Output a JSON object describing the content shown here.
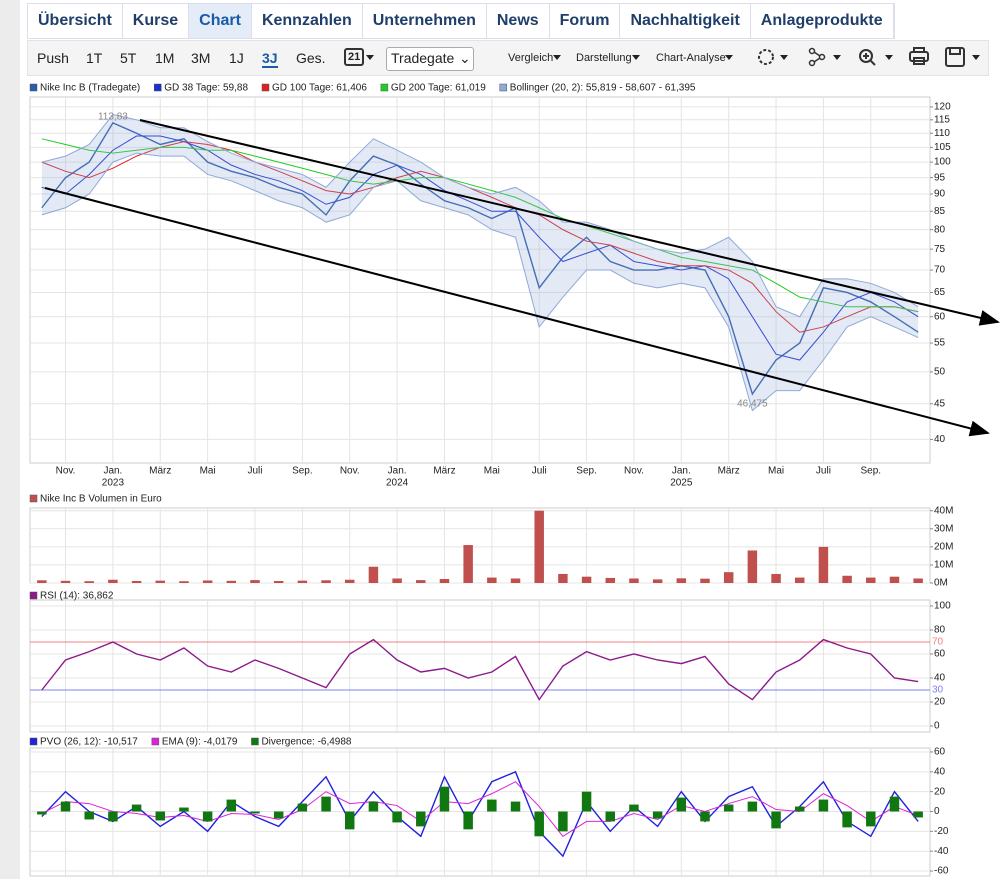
{
  "tabs": [
    "Übersicht",
    "Kurse",
    "Chart",
    "Kennzahlen",
    "Unternehmen",
    "News",
    "Forum",
    "Nachhaltigkeit",
    "Anlageprodukte"
  ],
  "toolbar": {
    "periods": [
      "Push",
      "1T",
      "5T",
      "1M",
      "3M",
      "1J",
      "3J",
      "Ges."
    ],
    "calendar": "21",
    "exchange": "Tradegate",
    "menus": [
      "Vergleich",
      "Darstellung",
      "Chart-Analyse"
    ]
  },
  "chart_data": [
    {
      "type": "line",
      "log_scale": true,
      "grid": true,
      "categories": [
        null,
        "Nov.",
        null,
        "Jan.",
        null,
        "März",
        null,
        "Mai",
        null,
        "Juli",
        null,
        "Sep.",
        null,
        "Nov.",
        null,
        "Jan.",
        null,
        "März",
        null,
        "Mai",
        null,
        "Juli",
        null,
        "Sep.",
        null,
        "Nov.",
        null,
        "Jan.",
        null,
        "März",
        null,
        "Mai",
        null,
        "Juli",
        null,
        "Sep.",
        null,
        null
      ],
      "x_year_labels": [
        "2023",
        "2024",
        "2025"
      ],
      "ylim": [
        37,
        124
      ],
      "yticks": [
        40,
        45,
        50,
        55,
        60,
        65,
        70,
        75,
        80,
        85,
        90,
        95,
        100,
        105,
        110,
        115,
        120
      ],
      "annotations": [
        {
          "label": "113,83",
          "value": 113.83
        },
        {
          "label": "46,475",
          "value": 46.475
        }
      ],
      "series": [
        {
          "name": "Nike Inc B (Tradegate)",
          "color": "#2b5cab",
          "values": [
            86,
            95,
            100,
            113.83,
            110,
            106,
            108,
            100,
            97,
            95,
            92,
            90,
            84,
            94,
            102,
            99,
            93,
            88,
            86,
            83,
            86,
            66,
            73,
            78,
            72,
            70,
            70,
            71,
            70,
            60,
            46.475,
            52,
            55,
            66,
            65,
            63,
            60,
            57
          ]
        },
        {
          "name": "GD 38 Tage: 59,88",
          "color": "#1a2fd0",
          "values": [
            92,
            90,
            96,
            104,
            109,
            109,
            107,
            104,
            99,
            96,
            94,
            91,
            87,
            89,
            96,
            99,
            96,
            91,
            88,
            85,
            85,
            78,
            72,
            74,
            76,
            72,
            71,
            70,
            71,
            68,
            60,
            53,
            52,
            57,
            63,
            65,
            63,
            60
          ]
        },
        {
          "name": "GD 100 Tage: 61,406",
          "color": "#e02020",
          "values": [
            100,
            97,
            95,
            98,
            102,
            105,
            107,
            106,
            104,
            100,
            97,
            94,
            91,
            90,
            92,
            95,
            97,
            95,
            92,
            89,
            86,
            84,
            80,
            77,
            76,
            74,
            72,
            71,
            71,
            70,
            67,
            61,
            57,
            58,
            60,
            62,
            62,
            61
          ]
        },
        {
          "name": "GD 200 Tage: 61,019",
          "color": "#22cc22",
          "values": [
            108,
            106,
            104,
            103,
            104,
            105,
            105,
            104,
            104,
            102,
            100,
            98,
            96,
            94,
            93,
            94,
            95,
            95,
            93,
            91,
            89,
            86,
            83,
            81,
            79,
            77,
            75,
            73,
            72,
            71,
            70,
            67,
            64,
            63,
            62,
            62,
            62,
            61
          ]
        },
        {
          "name": "Bollinger (20, 2): 55,819 - 58,607 - 61,395",
          "color": "#8fa9d8",
          "upper": [
            100,
            102,
            106,
            117,
            115,
            112,
            112,
            107,
            103,
            100,
            98,
            96,
            92,
            100,
            108,
            104,
            100,
            95,
            92,
            90,
            92,
            88,
            82,
            82,
            80,
            77,
            75,
            74,
            75,
            78,
            72,
            62,
            60,
            68,
            68,
            67,
            65,
            62
          ],
          "lower": [
            84,
            86,
            90,
            100,
            103,
            102,
            102,
            96,
            94,
            91,
            88,
            86,
            82,
            84,
            92,
            94,
            88,
            86,
            84,
            80,
            78,
            58,
            64,
            70,
            70,
            67,
            66,
            67,
            66,
            58,
            44,
            47,
            47,
            52,
            58,
            60,
            58,
            56
          ]
        }
      ]
    },
    {
      "type": "bar",
      "grid": true,
      "ylim": [
        0,
        41500000
      ],
      "yticks": [
        {
          "value": 0,
          "label": "0M"
        },
        {
          "value": 10000000,
          "label": "10M"
        },
        {
          "value": 20000000,
          "label": "20M"
        },
        {
          "value": 30000000,
          "label": "30M"
        },
        {
          "value": 40000000,
          "label": "40M"
        }
      ],
      "series": [
        {
          "name": "Nike Inc B Volumen in Euro",
          "color": "#c0504d",
          "values": [
            1500000,
            1200000,
            1000000,
            1800000,
            1100000,
            1300000,
            1000000,
            1400000,
            1200000,
            1600000,
            1100000,
            1300000,
            1500000,
            1800000,
            9000000,
            2500000,
            1600000,
            2200000,
            21000000,
            3000000,
            2500000,
            40000000,
            5000000,
            3500000,
            2800000,
            2500000,
            2000000,
            2600000,
            2400000,
            6000000,
            18000000,
            5000000,
            3000000,
            20000000,
            4000000,
            3000000,
            3500000,
            2500000
          ]
        }
      ]
    },
    {
      "type": "line",
      "grid": true,
      "ylim": [
        -5,
        105
      ],
      "yticks": [
        0,
        20,
        40,
        60,
        80,
        100
      ],
      "hlines": [
        {
          "value": 70,
          "color": "#f08080"
        },
        {
          "value": 30,
          "color": "#8080f0"
        }
      ],
      "series": [
        {
          "name": "RSI (14): 36,862",
          "color": "#8b1a8b",
          "values": [
            30,
            55,
            62,
            70,
            60,
            55,
            65,
            50,
            45,
            55,
            48,
            40,
            32,
            60,
            72,
            55,
            45,
            48,
            40,
            45,
            58,
            22,
            50,
            62,
            55,
            60,
            55,
            52,
            58,
            35,
            22,
            45,
            55,
            72,
            65,
            60,
            40,
            37
          ]
        }
      ]
    },
    {
      "type": "line",
      "grid": true,
      "ylim": [
        -65,
        64
      ],
      "yticks": [
        -60,
        -40,
        -20,
        0,
        20,
        40,
        60
      ],
      "series": [
        {
          "name": "PVO (26, 12): -10,517",
          "color": "#2222dd",
          "values": [
            -5,
            20,
            0,
            -10,
            5,
            -15,
            0,
            -20,
            10,
            -5,
            -15,
            10,
            35,
            -10,
            20,
            -5,
            -25,
            35,
            -10,
            30,
            40,
            -20,
            -45,
            10,
            -20,
            5,
            -15,
            20,
            -10,
            15,
            25,
            -15,
            5,
            30,
            -10,
            -25,
            20,
            -10
          ]
        },
        {
          "name": "EMA (9): -4,0179",
          "color": "#dd22dd",
          "values": [
            -2,
            10,
            8,
            0,
            -2,
            -6,
            -4,
            -10,
            -2,
            -3,
            -8,
            2,
            20,
            8,
            10,
            6,
            -10,
            10,
            8,
            18,
            30,
            5,
            -25,
            -10,
            -10,
            -2,
            -8,
            6,
            0,
            8,
            15,
            2,
            0,
            18,
            6,
            -10,
            5,
            -4
          ]
        },
        {
          "name": "Divergence: -6,4988",
          "color": "#117711",
          "mark": "bar",
          "values": [
            -3,
            10,
            -8,
            -10,
            7,
            -9,
            4,
            -10,
            12,
            -2,
            -7,
            8,
            15,
            -18,
            10,
            -11,
            -15,
            25,
            -18,
            12,
            10,
            -25,
            -20,
            20,
            -10,
            7,
            -7,
            14,
            -10,
            7,
            10,
            -17,
            5,
            12,
            -16,
            -15,
            15,
            -6
          ]
        }
      ]
    }
  ]
}
